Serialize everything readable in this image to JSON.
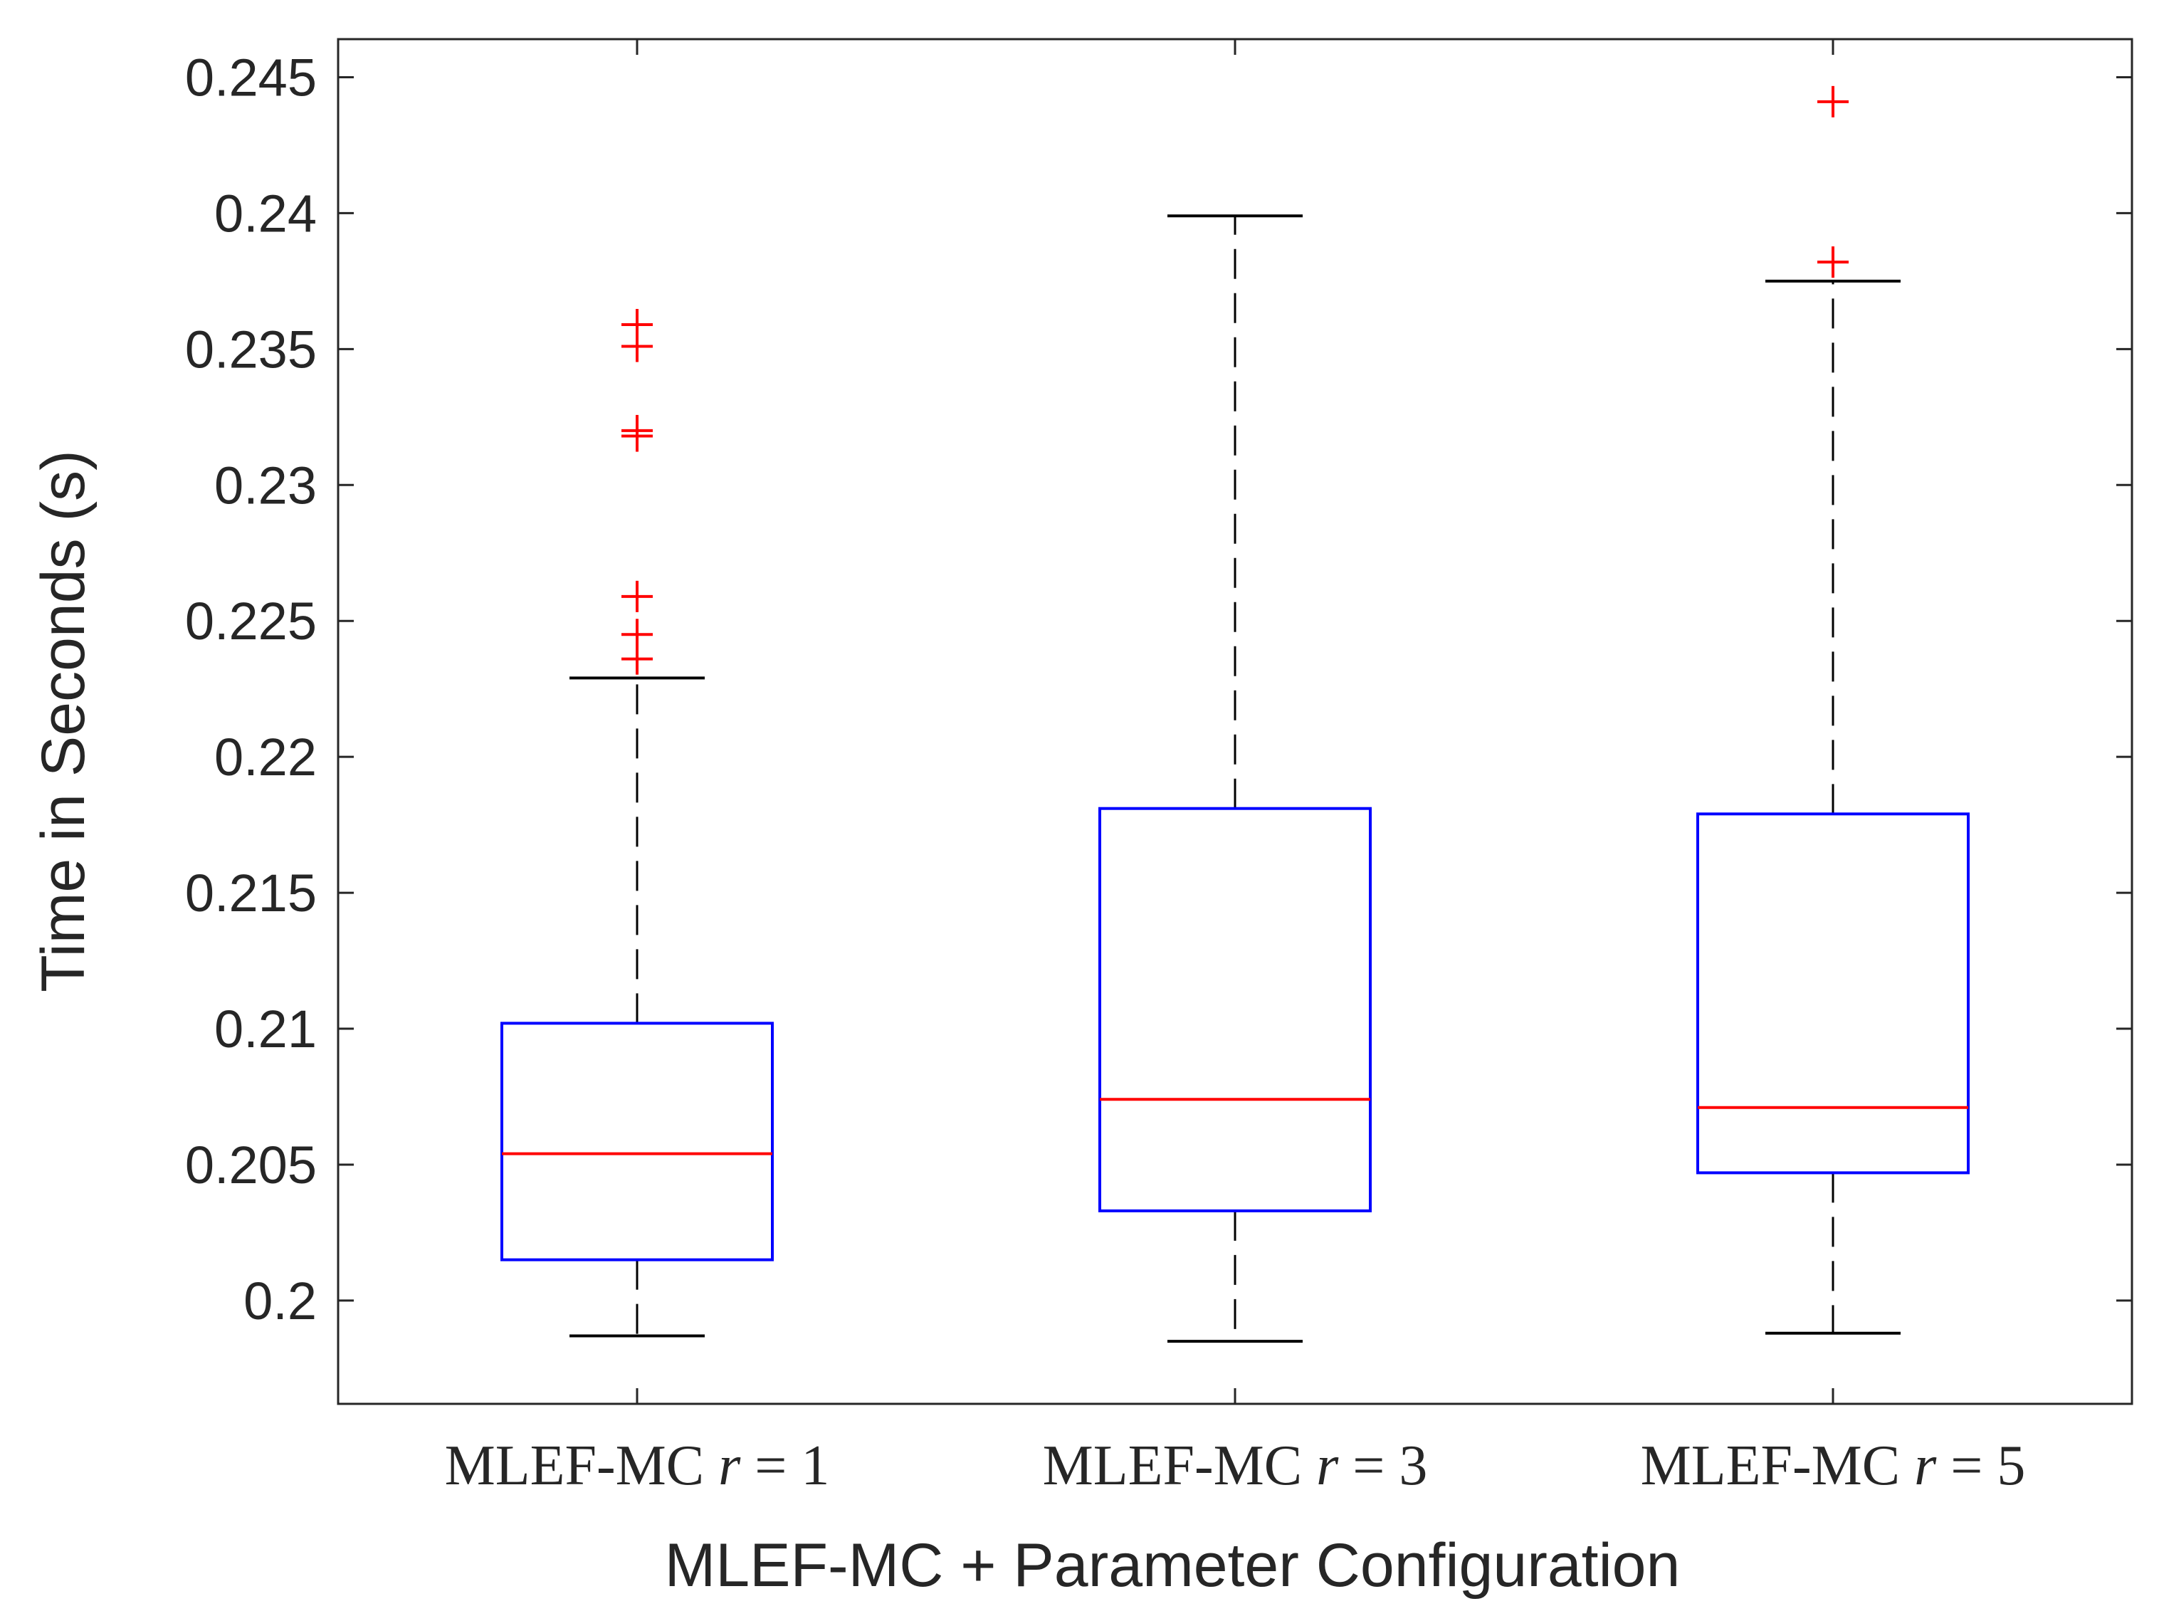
{
  "chart_data": {
    "type": "box",
    "title": "",
    "xlabel": "MLEF-MC + Parameter Configuration",
    "ylabel": "Time in Seconds (s)",
    "ylim": [
      0.1962,
      0.2464
    ],
    "yticks": [
      0.2,
      0.205,
      0.21,
      0.215,
      0.22,
      0.225,
      0.23,
      0.235,
      0.24,
      0.245
    ],
    "ytick_labels": [
      "0.2",
      "0.205",
      "0.21",
      "0.215",
      "0.22",
      "0.225",
      "0.23",
      "0.235",
      "0.24",
      "0.245"
    ],
    "grid": false,
    "colors": {
      "box": "#0000ff",
      "median": "#ff0000",
      "outlier": "#ff0000",
      "whisker": "#000000",
      "axis": "#262626"
    },
    "categories": [
      {
        "label_prefix": "MLEF-MC ",
        "label_var": "r",
        "label_rel": " = 1"
      },
      {
        "label_prefix": "MLEF-MC ",
        "label_var": "r",
        "label_rel": " = 3"
      },
      {
        "label_prefix": "MLEF-MC ",
        "label_var": "r",
        "label_rel": " = 5"
      }
    ],
    "boxes": [
      {
        "whisker_low": 0.1987,
        "q1": 0.2015,
        "median": 0.2054,
        "q3": 0.2102,
        "whisker_high": 0.2229,
        "outliers": [
          0.2236,
          0.2245,
          0.2259,
          0.2318,
          0.232,
          0.2351,
          0.2359
        ]
      },
      {
        "whisker_low": 0.1985,
        "q1": 0.2033,
        "median": 0.2074,
        "q3": 0.2181,
        "whisker_high": 0.2399,
        "outliers": []
      },
      {
        "whisker_low": 0.1988,
        "q1": 0.2047,
        "median": 0.2071,
        "q3": 0.2179,
        "whisker_high": 0.2375,
        "outliers": [
          0.2382,
          0.2441
        ]
      }
    ]
  }
}
